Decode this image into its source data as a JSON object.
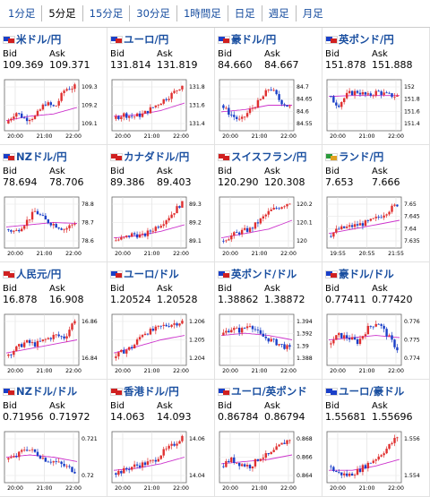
{
  "tabs": [
    {
      "label": "1分足"
    },
    {
      "label": "5分足",
      "active": true
    },
    {
      "label": "15分足"
    },
    {
      "label": "30分足"
    },
    {
      "label": "1時間足"
    },
    {
      "label": "日足"
    },
    {
      "label": "週足"
    },
    {
      "label": "月足"
    }
  ],
  "labels": {
    "bid": "Bid",
    "ask": "Ask"
  },
  "colors": {
    "up": "#e03030",
    "down": "#1a3fc8",
    "ma": "#cc33cc",
    "title": "#1a4fa0"
  },
  "panels": [
    {
      "title": "米ドル/円",
      "bid": "109.369",
      "ask": "109.371",
      "flag": [
        "#1a3fc8",
        "#d02020"
      ],
      "y_ticks": [
        "109.3",
        "109.2",
        "109.1"
      ],
      "x_ticks": [
        "20:00",
        "21:00",
        "22:00"
      ],
      "trend": [
        0.1,
        0.35,
        0.2,
        0.25,
        0.55,
        0.45,
        0.85,
        0.9
      ],
      "ma": [
        0.15,
        0.25,
        0.3,
        0.45
      ]
    },
    {
      "title": "ユーロ/円",
      "bid": "131.814",
      "ask": "131.819",
      "flag": [
        "#1a3fc8",
        "#d02020"
      ],
      "y_ticks": [
        "131.8",
        "131.6",
        "131.4"
      ],
      "x_ticks": [
        "20:00",
        "21:00",
        "22:00"
      ],
      "trend": [
        0.2,
        0.3,
        0.25,
        0.3,
        0.45,
        0.6,
        0.75,
        0.95
      ],
      "ma": [
        0.25,
        0.28,
        0.38,
        0.55
      ]
    },
    {
      "title": "豪ドル/円",
      "bid": "84.660",
      "ask": "84.667",
      "flag": [
        "#1a3fc8",
        "#d02020"
      ],
      "y_ticks": [
        "84.7",
        "84.65",
        "84.6",
        "84.55"
      ],
      "x_ticks": [
        "20:00",
        "21:00",
        "22:00"
      ],
      "trend": [
        0.5,
        0.3,
        0.15,
        0.4,
        0.6,
        0.9,
        0.6,
        0.45
      ],
      "ma": [
        0.35,
        0.4,
        0.5,
        0.5
      ]
    },
    {
      "title": "英ポンド/円",
      "bid": "151.878",
      "ask": "151.888",
      "flag": [
        "#1a3fc8",
        "#d02020"
      ],
      "y_ticks": [
        "152",
        "151.8",
        "151.6",
        "151.4"
      ],
      "x_ticks": [
        "20:00",
        "21:00",
        "22:00"
      ],
      "trend": [
        0.7,
        0.5,
        0.75,
        0.8,
        0.7,
        0.8,
        0.72,
        0.7
      ],
      "ma": [
        0.7,
        0.72,
        0.72,
        0.72
      ]
    },
    {
      "title": "NZドル/円",
      "bid": "78.694",
      "ask": "78.706",
      "flag": [
        "#1a3fc8",
        "#d02020"
      ],
      "y_ticks": [
        "78.8",
        "78.7",
        "78.6"
      ],
      "x_ticks": [
        "20:00",
        "21:00",
        "22:00"
      ],
      "trend": [
        0.35,
        0.3,
        0.5,
        0.75,
        0.55,
        0.45,
        0.35,
        0.5
      ],
      "ma": [
        0.4,
        0.45,
        0.5,
        0.48
      ]
    },
    {
      "title": "カナダドル/円",
      "bid": "89.386",
      "ask": "89.403",
      "flag": [
        "#d02020",
        "#d02020"
      ],
      "y_ticks": [
        "89.3",
        "89.2",
        "89.1"
      ],
      "x_ticks": [
        "20:00",
        "21:00",
        "22:00"
      ],
      "trend": [
        0.1,
        0.15,
        0.25,
        0.2,
        0.35,
        0.5,
        0.7,
        0.95
      ],
      "ma": [
        0.15,
        0.2,
        0.3,
        0.45
      ]
    },
    {
      "title": "スイスフラン/円",
      "bid": "120.290",
      "ask": "120.308",
      "flag": [
        "#d02020",
        "#d02020"
      ],
      "y_ticks": [
        "120.2",
        "120.1",
        "120"
      ],
      "x_ticks": [
        "20:00",
        "21:00",
        "22:00"
      ],
      "trend": [
        0.1,
        0.2,
        0.3,
        0.35,
        0.55,
        0.75,
        0.85,
        0.95
      ],
      "ma": [
        0.15,
        0.25,
        0.35,
        0.55
      ]
    },
    {
      "title": "ランド/円",
      "bid": "7.653",
      "ask": "7.666",
      "flag": [
        "#2a9a3a",
        "#e0a020"
      ],
      "y_ticks": [
        "7.65",
        "7.645",
        "7.64",
        "7.635"
      ],
      "x_ticks": [
        "19:55",
        "20:55",
        "21:55"
      ],
      "trend": [
        0.2,
        0.35,
        0.4,
        0.45,
        0.5,
        0.6,
        0.75,
        0.9
      ],
      "ma": [
        0.25,
        0.35,
        0.45,
        0.55
      ]
    },
    {
      "title": "人民元/円",
      "bid": "16.878",
      "ask": "16.908",
      "flag": [
        "#d02020",
        "#d02020"
      ],
      "y_ticks": [
        "16.86",
        "16.84"
      ],
      "x_ticks": [
        "20:00",
        "21:00",
        "22:00"
      ],
      "trend": [
        0.15,
        0.3,
        0.45,
        0.4,
        0.5,
        0.6,
        0.55,
        0.95
      ],
      "ma": [
        0.2,
        0.3,
        0.4,
        0.5
      ]
    },
    {
      "title": "ユーロ/ドル",
      "bid": "1.20524",
      "ask": "1.20528",
      "flag": [
        "#1a3fc8",
        "#d02020"
      ],
      "y_ticks": [
        "1.206",
        "1.205",
        "1.204"
      ],
      "x_ticks": [
        "20:00",
        "21:00",
        "22:00"
      ],
      "trend": [
        0.1,
        0.25,
        0.35,
        0.65,
        0.7,
        0.8,
        0.85,
        0.9
      ],
      "ma": [
        0.2,
        0.35,
        0.5,
        0.6
      ]
    },
    {
      "title": "英ポンド/ドル",
      "bid": "1.38862",
      "ask": "1.38872",
      "flag": [
        "#1a3fc8",
        "#d02020"
      ],
      "y_ticks": [
        "1.394",
        "1.392",
        "1.39",
        "1.388"
      ],
      "x_ticks": [
        "20:00",
        "21:00",
        "22:00"
      ],
      "trend": [
        0.6,
        0.75,
        0.7,
        0.85,
        0.6,
        0.5,
        0.4,
        0.3
      ],
      "ma": [
        0.6,
        0.65,
        0.6,
        0.5
      ]
    },
    {
      "title": "豪ドル/ドル",
      "bid": "0.77411",
      "ask": "0.77420",
      "flag": [
        "#1a3fc8",
        "#d02020"
      ],
      "y_ticks": [
        "0.776",
        "0.775",
        "0.774"
      ],
      "x_ticks": [
        "20:00",
        "21:00",
        "22:00"
      ],
      "trend": [
        0.4,
        0.6,
        0.55,
        0.45,
        0.75,
        0.9,
        0.6,
        0.3
      ],
      "ma": [
        0.5,
        0.55,
        0.6,
        0.55
      ]
    },
    {
      "title": "NZドル/ドル",
      "bid": "0.71956",
      "ask": "0.71972",
      "flag": [
        "#1a3fc8",
        "#d02020"
      ],
      "y_ticks": [
        "0.721",
        "0.72"
      ],
      "x_ticks": [
        "20:00",
        "21:00",
        "22:00"
      ],
      "trend": [
        0.45,
        0.5,
        0.7,
        0.6,
        0.45,
        0.4,
        0.3,
        0.2
      ],
      "ma": [
        0.5,
        0.55,
        0.5,
        0.4
      ]
    },
    {
      "title": "香港ドル/円",
      "bid": "14.063",
      "ask": "14.093",
      "flag": [
        "#d02020",
        "#d02020"
      ],
      "y_ticks": [
        "14.06",
        "14.04"
      ],
      "x_ticks": [
        "20:00",
        "21:00",
        "22:00"
      ],
      "trend": [
        0.15,
        0.2,
        0.3,
        0.35,
        0.4,
        0.6,
        0.75,
        0.95
      ],
      "ma": [
        0.2,
        0.25,
        0.35,
        0.5
      ]
    },
    {
      "title": "ユーロ/英ポンド",
      "bid": "0.86784",
      "ask": "0.86794",
      "flag": [
        "#1a3fc8",
        "#d02020"
      ],
      "y_ticks": [
        "0.868",
        "0.866",
        "0.864"
      ],
      "x_ticks": [
        "20:00",
        "21:00",
        "22:00"
      ],
      "trend": [
        0.3,
        0.45,
        0.35,
        0.3,
        0.5,
        0.55,
        0.75,
        0.9
      ],
      "ma": [
        0.35,
        0.4,
        0.45,
        0.55
      ]
    },
    {
      "title": "ユーロ/豪ドル",
      "bid": "1.55681",
      "ask": "1.55696",
      "flag": [
        "#1a3fc8",
        "#1a3fc8"
      ],
      "y_ticks": [
        "1.556",
        "1.554"
      ],
      "x_ticks": [
        "20:00",
        "21:00",
        "22:00"
      ],
      "trend": [
        0.3,
        0.15,
        0.1,
        0.2,
        0.35,
        0.5,
        0.7,
        0.95
      ],
      "ma": [
        0.2,
        0.2,
        0.3,
        0.45
      ]
    }
  ]
}
